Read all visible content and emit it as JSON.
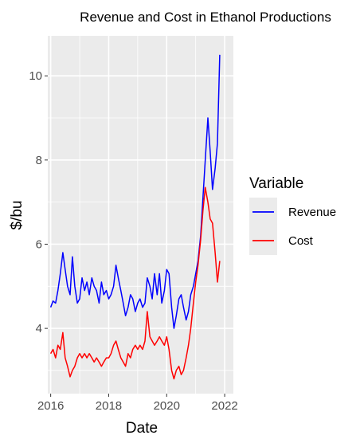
{
  "chart_data": {
    "type": "line",
    "title": "Revenue and Cost in Ethanol Productions",
    "xlabel": "Date",
    "ylabel": "$/bu",
    "xlim": [
      2015.9,
      2022.3
    ],
    "ylim": [
      2.45,
      10.95
    ],
    "x_ticks": [
      2016,
      2018,
      2020,
      2022
    ],
    "x_tick_labels": [
      "2016",
      "2018",
      "2020",
      "2022"
    ],
    "y_ticks": [
      4,
      6,
      8,
      10
    ],
    "y_tick_labels": [
      "4",
      "6",
      "8",
      "10"
    ],
    "grid": true,
    "legend": {
      "title": "Variable",
      "position": "right"
    },
    "series": [
      {
        "name": "Revenue",
        "color": "#0000ff",
        "x": [
          2016.0,
          2016.08,
          2016.17,
          2016.25,
          2016.33,
          2016.42,
          2016.5,
          2016.58,
          2016.67,
          2016.75,
          2016.83,
          2016.92,
          2017.0,
          2017.08,
          2017.17,
          2017.25,
          2017.33,
          2017.42,
          2017.5,
          2017.58,
          2017.67,
          2017.75,
          2017.83,
          2017.92,
          2018.0,
          2018.08,
          2018.17,
          2018.25,
          2018.33,
          2018.42,
          2018.5,
          2018.58,
          2018.67,
          2018.75,
          2018.83,
          2018.92,
          2019.0,
          2019.08,
          2019.17,
          2019.25,
          2019.33,
          2019.42,
          2019.5,
          2019.58,
          2019.67,
          2019.75,
          2019.83,
          2019.92,
          2020.0,
          2020.08,
          2020.17,
          2020.25,
          2020.33,
          2020.42,
          2020.5,
          2020.58,
          2020.67,
          2020.75,
          2020.83,
          2020.92,
          2021.0,
          2021.08,
          2021.17,
          2021.25,
          2021.33,
          2021.42,
          2021.5,
          2021.58,
          2021.67,
          2021.75,
          2021.83
        ],
        "y": [
          4.5,
          4.65,
          4.6,
          4.9,
          5.3,
          5.8,
          5.4,
          5.0,
          4.8,
          5.7,
          5.0,
          4.6,
          4.7,
          5.2,
          4.9,
          5.1,
          4.8,
          5.2,
          5.0,
          4.9,
          4.6,
          5.1,
          4.8,
          4.9,
          4.7,
          4.8,
          5.0,
          5.5,
          5.2,
          4.9,
          4.6,
          4.3,
          4.5,
          4.8,
          4.7,
          4.4,
          4.6,
          4.7,
          4.5,
          4.6,
          5.2,
          5.0,
          4.7,
          5.3,
          4.8,
          5.3,
          4.6,
          4.9,
          5.4,
          5.3,
          4.5,
          4.0,
          4.3,
          4.7,
          4.8,
          4.5,
          4.2,
          4.4,
          4.8,
          5.0,
          5.3,
          5.6,
          6.2,
          7.1,
          8.0,
          9.0,
          8.2,
          7.3,
          7.8,
          8.4,
          10.5
        ]
      },
      {
        "name": "Cost",
        "color": "#ff0000",
        "x": [
          2016.0,
          2016.08,
          2016.17,
          2016.25,
          2016.33,
          2016.42,
          2016.5,
          2016.58,
          2016.67,
          2016.75,
          2016.83,
          2016.92,
          2017.0,
          2017.08,
          2017.17,
          2017.25,
          2017.33,
          2017.42,
          2017.5,
          2017.58,
          2017.67,
          2017.75,
          2017.83,
          2017.92,
          2018.0,
          2018.08,
          2018.17,
          2018.25,
          2018.33,
          2018.42,
          2018.5,
          2018.58,
          2018.67,
          2018.75,
          2018.83,
          2018.92,
          2019.0,
          2019.08,
          2019.17,
          2019.25,
          2019.33,
          2019.42,
          2019.5,
          2019.58,
          2019.67,
          2019.75,
          2019.83,
          2019.92,
          2020.0,
          2020.08,
          2020.17,
          2020.25,
          2020.33,
          2020.42,
          2020.5,
          2020.58,
          2020.67,
          2020.75,
          2020.83,
          2020.92,
          2021.0,
          2021.08,
          2021.17,
          2021.25,
          2021.33,
          2021.42,
          2021.5,
          2021.58,
          2021.67,
          2021.75,
          2021.83
        ],
        "y": [
          3.4,
          3.5,
          3.3,
          3.6,
          3.5,
          3.9,
          3.3,
          3.1,
          2.85,
          3.0,
          3.1,
          3.3,
          3.4,
          3.3,
          3.4,
          3.3,
          3.4,
          3.3,
          3.2,
          3.3,
          3.2,
          3.1,
          3.2,
          3.3,
          3.3,
          3.4,
          3.6,
          3.7,
          3.5,
          3.3,
          3.2,
          3.1,
          3.4,
          3.3,
          3.5,
          3.6,
          3.5,
          3.6,
          3.5,
          3.7,
          4.4,
          3.8,
          3.7,
          3.6,
          3.7,
          3.8,
          3.7,
          3.6,
          3.8,
          3.5,
          3.0,
          2.8,
          3.0,
          3.1,
          2.9,
          3.0,
          3.3,
          3.6,
          4.0,
          4.6,
          5.1,
          5.5,
          6.1,
          6.8,
          7.35,
          7.0,
          6.6,
          6.5,
          5.8,
          5.1,
          5.6
        ]
      }
    ]
  }
}
